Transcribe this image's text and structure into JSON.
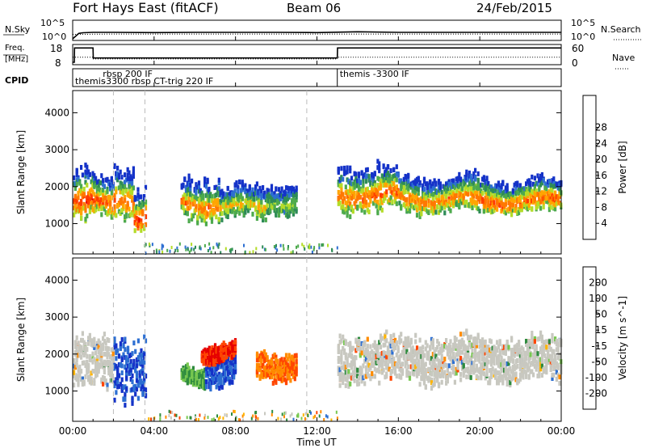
{
  "header": {
    "radar_title": "Fort Hays East (fitACF)",
    "beam_label": "Beam 06",
    "date_label": "24/Feb/2015"
  },
  "strip_panels": {
    "nsky": {
      "left_label": "N.Sky",
      "left_ticks": [
        "10^5",
        "10^0"
      ],
      "right_label": "N.Search",
      "right_ticks": [
        "10^5",
        "10^0"
      ]
    },
    "freq": {
      "left_label_line1": "Freq.",
      "left_label_line2": "[MHz]",
      "left_ticks": [
        "18",
        "8"
      ],
      "right_label": "Nave",
      "right_ticks": [
        "60",
        "0"
      ]
    },
    "cpid": {
      "label": "CPID",
      "entries": [
        {
          "text": "themis",
          "start_hour": 0.0
        },
        {
          "text": "rbsp 200 IF",
          "start_hour": 1.0
        },
        {
          "text": "-3300 rbsp CT-trig 220 IF",
          "start_hour": 1.0
        },
        {
          "text": "themis -3300 IF",
          "start_hour": 13.0
        }
      ]
    }
  },
  "colors": {
    "power_scale": [
      "#1432c8",
      "#2d6fd2",
      "#2e8b57",
      "#4daa4d",
      "#b4dc28",
      "#ffa500",
      "#ff7800",
      "#ff3c00",
      "#e60000"
    ],
    "velocity_scale": [
      "#1432c8",
      "#2d6fd2",
      "#2e8b3e",
      "#78c850",
      "#c8c8c0",
      "#ffb400",
      "#ff8c00",
      "#ff4600",
      "#e60000"
    ],
    "ground_scatter": "#c8c8c0",
    "grid_dash": "#bbbbbb"
  },
  "chart_data": [
    {
      "type": "line",
      "panel": "N.Sky / N.Search",
      "ylabel_left": "N.Sky",
      "ylabel_right": "N.Search",
      "y_scale": "log",
      "ylim": [
        1,
        100000
      ],
      "xlim_hours": [
        0,
        24
      ],
      "series": [
        {
          "name": "N.Sky",
          "x": [
            0.0,
            0.3,
            0.5,
            1.0,
            2.0,
            4.0,
            6.0,
            8.0,
            10.0,
            12.0,
            13.0,
            14.0,
            16.0,
            18.0,
            20.0,
            22.0,
            24.0
          ],
          "y": [
            1,
            40,
            60,
            80,
            80,
            70,
            80,
            80,
            80,
            70,
            90,
            120,
            80,
            80,
            80,
            80,
            80
          ]
        },
        {
          "name": "N.Search",
          "x": [
            0.0,
            2.0,
            4.0,
            6.0,
            8.0,
            10.0,
            12.0,
            14.0,
            16.0,
            18.0,
            20.0,
            22.0,
            24.0
          ],
          "y": [
            20,
            25,
            25,
            25,
            25,
            25,
            25,
            25,
            25,
            25,
            25,
            25,
            25
          ]
        }
      ]
    },
    {
      "type": "line",
      "panel": "Freq. / Nave",
      "ylabel_left": "Freq. [MHz]",
      "ylabel_right": "Nave",
      "ylim": [
        8,
        18
      ],
      "ylim_right": [
        0,
        60
      ],
      "xlim_hours": [
        0,
        24
      ],
      "series": [
        {
          "name": "Freq.",
          "x": [
            0.0,
            0.08,
            0.09,
            1.0,
            1.01,
            13.0,
            13.01,
            24.0
          ],
          "y": [
            8,
            8,
            17.3,
            17.3,
            10.8,
            10.8,
            17.3,
            17.3
          ]
        },
        {
          "name": "Nave",
          "x": [
            0.0,
            1.0,
            1.01,
            13.0,
            13.01,
            24.0
          ],
          "y": [
            20,
            20,
            13,
            13,
            20,
            20
          ]
        }
      ]
    },
    {
      "type": "heatmap",
      "panel": "Power",
      "xlabel": "",
      "ylabel": "Slant Range [km]",
      "xlim_hours": [
        0,
        24
      ],
      "ylim": [
        180,
        4600
      ],
      "y_ticks": [
        1000,
        2000,
        3000,
        4000
      ],
      "colorbar": {
        "label": "Power [dB]",
        "ticks": [
          4,
          8,
          12,
          16,
          20,
          24,
          28
        ],
        "range": [
          0,
          32
        ]
      },
      "scatter_regions": [
        {
          "t_start": 0.0,
          "t_end": 1.0,
          "range_min": 1000,
          "range_max": 2500,
          "peak_power": 28
        },
        {
          "t_start": 1.0,
          "t_end": 2.0,
          "range_min": 1100,
          "range_max": 2300,
          "peak_power": 26
        },
        {
          "t_start": 2.0,
          "t_end": 3.0,
          "range_min": 1200,
          "range_max": 2600,
          "peak_power": 26
        },
        {
          "t_start": 3.0,
          "t_end": 3.6,
          "range_min": 750,
          "range_max": 2000,
          "peak_power": 30
        },
        {
          "t_start": 5.3,
          "t_end": 7.2,
          "range_min": 1100,
          "range_max": 2300,
          "peak_power": 24
        },
        {
          "t_start": 7.2,
          "t_end": 9.5,
          "range_min": 1100,
          "range_max": 2000,
          "peak_power": 20
        },
        {
          "t_start": 9.5,
          "t_end": 11.0,
          "range_min": 1300,
          "range_max": 2100,
          "peak_power": 16
        },
        {
          "t_start": 13.0,
          "t_end": 16.0,
          "range_min": 1300,
          "range_max": 2600,
          "peak_power": 26
        },
        {
          "t_start": 16.0,
          "t_end": 20.0,
          "range_min": 1300,
          "range_max": 2300,
          "peak_power": 24
        },
        {
          "t_start": 20.0,
          "t_end": 24.0,
          "range_min": 1300,
          "range_max": 2200,
          "peak_power": 26
        }
      ]
    },
    {
      "type": "heatmap",
      "panel": "Velocity",
      "xlabel": "Time UT",
      "ylabel": "Slant Range [km]",
      "xlim_hours": [
        0,
        24
      ],
      "x_ticks": [
        "00:00",
        "04:00",
        "08:00",
        "12:00",
        "16:00",
        "20:00",
        "00:00"
      ],
      "ylim": [
        180,
        4600
      ],
      "y_ticks": [
        1000,
        2000,
        3000,
        4000
      ],
      "colorbar": {
        "label": "Velocity [m s^-1]",
        "ticks": [
          200,
          100,
          50,
          15,
          -15,
          -50,
          -100,
          -200
        ],
        "range": [
          -250,
          250
        ]
      },
      "scatter_regions": [
        {
          "t_start": 0.0,
          "t_end": 2.0,
          "range_min": 1000,
          "range_max": 2500,
          "velocity": 0,
          "ground_scatter": true
        },
        {
          "t_start": 2.0,
          "t_end": 3.6,
          "range_min": 750,
          "range_max": 2500,
          "velocity": 200
        },
        {
          "t_start": 5.3,
          "t_end": 6.5,
          "range_min": 1200,
          "range_max": 1700,
          "velocity": 50
        },
        {
          "t_start": 6.5,
          "t_end": 8.0,
          "range_min": 1100,
          "range_max": 2000,
          "velocity": 200
        },
        {
          "t_start": 6.3,
          "t_end": 8.0,
          "range_min": 1800,
          "range_max": 2300,
          "velocity": -200
        },
        {
          "t_start": 9.0,
          "t_end": 11.0,
          "range_min": 1300,
          "range_max": 2100,
          "velocity": -100
        },
        {
          "t_start": 13.0,
          "t_end": 24.0,
          "range_min": 1200,
          "range_max": 2500,
          "velocity": 0,
          "ground_scatter": true
        }
      ]
    }
  ]
}
